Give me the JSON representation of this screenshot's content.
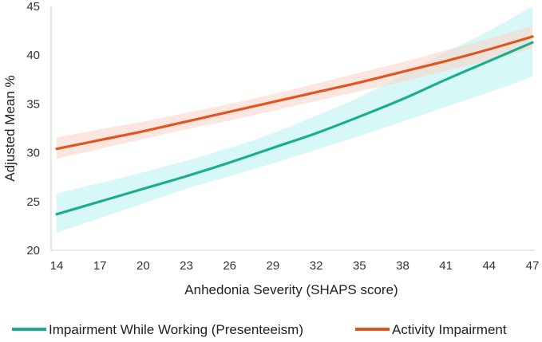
{
  "chart_data": {
    "type": "line",
    "xlabel": "Anhedonia Severity (SHAPS score)",
    "ylabel": "Adjusted Mean %",
    "xlim": [
      14,
      47
    ],
    "ylim": [
      20,
      45
    ],
    "x_ticks": [
      14,
      17,
      20,
      23,
      26,
      29,
      32,
      35,
      38,
      41,
      44,
      47
    ],
    "y_ticks": [
      20,
      25,
      30,
      35,
      40,
      45
    ],
    "grid": false,
    "legend_position": "bottom",
    "x": [
      14,
      17,
      20,
      23,
      26,
      29,
      32,
      35,
      38,
      41,
      44,
      47
    ],
    "series": [
      {
        "name": "Impairment While Working (Presenteeism)",
        "color": "#1aae8f",
        "band_color": "#b8f3f3",
        "values": [
          23.7,
          25.0,
          26.3,
          27.6,
          29.0,
          30.5,
          32.0,
          33.7,
          35.5,
          37.5,
          39.4,
          41.3
        ],
        "ci_lower": [
          21.8,
          23.3,
          24.8,
          26.3,
          27.6,
          28.9,
          30.3,
          31.7,
          33.2,
          34.7,
          36.2,
          37.8
        ],
        "ci_upper": [
          25.8,
          26.9,
          28.0,
          29.2,
          30.5,
          32.0,
          33.8,
          35.7,
          38.0,
          40.3,
          42.5,
          45.0
        ]
      },
      {
        "name": "Activity Impairment",
        "color": "#e0561f",
        "band_color": "#f9d3c6",
        "values": [
          30.4,
          31.3,
          32.2,
          33.2,
          34.2,
          35.2,
          36.2,
          37.2,
          38.3,
          39.4,
          40.6,
          41.9
        ],
        "ci_lower": [
          29.4,
          30.4,
          31.4,
          32.4,
          33.3,
          34.3,
          35.3,
          36.3,
          37.3,
          38.4,
          39.5,
          40.7
        ],
        "ci_upper": [
          31.6,
          32.4,
          33.2,
          34.1,
          35.0,
          36.0,
          37.1,
          38.2,
          39.3,
          40.5,
          41.7,
          43.0
        ]
      }
    ]
  }
}
